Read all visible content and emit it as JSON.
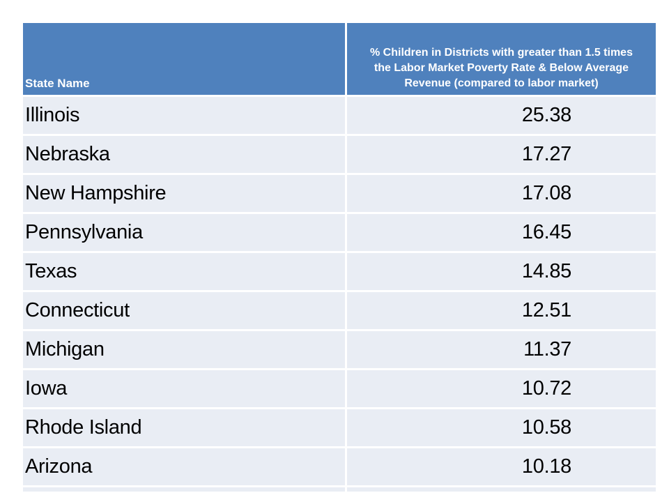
{
  "chart_data": {
    "type": "table",
    "title": "",
    "columns": [
      "State Name",
      "% Children in Districts with greater than 1.5 times the Labor Market Poverty Rate & Below Average Revenue (compared to labor market)"
    ],
    "rows": [
      [
        "Illinois",
        25.38
      ],
      [
        "Nebraska",
        17.27
      ],
      [
        "New Hampshire",
        17.08
      ],
      [
        "Pennsylvania",
        16.45
      ],
      [
        "Texas",
        14.85
      ],
      [
        "Connecticut",
        12.51
      ],
      [
        "Michigan",
        11.37
      ],
      [
        "Iowa",
        10.72
      ],
      [
        "Rhode Island",
        10.58
      ],
      [
        "Arizona",
        10.18
      ]
    ]
  },
  "header": {
    "state_label": "State Name",
    "percent_lines": [
      "% Children in Districts with greater than 1.5 times",
      "the Labor Market Poverty Rate & Below Average",
      "Revenue (compared to labor market)"
    ]
  },
  "colors": {
    "header_bg": "#4F81BD",
    "header_text": "#FFFFFF",
    "row_bg": "#E9EDF4",
    "row_text": "#000000",
    "divider": "#FFFFFF"
  }
}
